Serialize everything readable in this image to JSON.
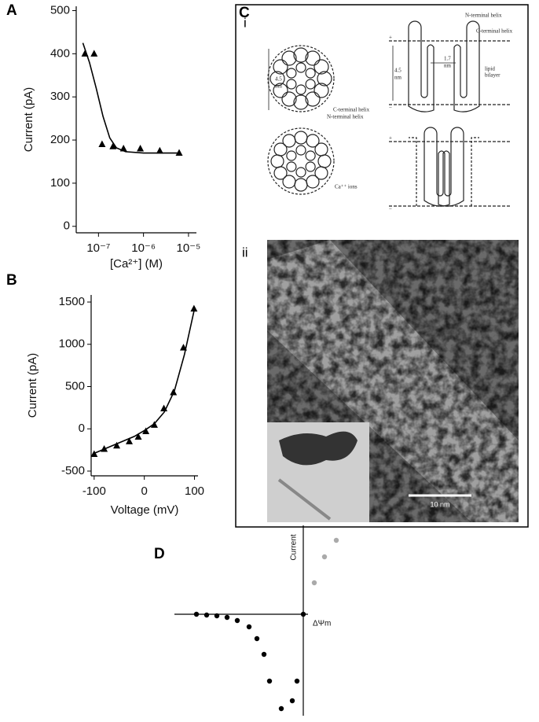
{
  "chart_data": [
    {
      "type": "scatter",
      "label": "A",
      "xlabel": "[Ca²⁺] (M)",
      "ylabel": "Current (pA)",
      "xscale": "log",
      "xlim": [
        3.2e-08,
        1.5e-05
      ],
      "ylim": [
        -15,
        510
      ],
      "xticks": [
        {
          "value": 1e-07,
          "label": "10⁻⁷"
        },
        {
          "value": 1e-06,
          "label": "10⁻⁶"
        },
        {
          "value": 1e-05,
          "label": "10⁻⁵"
        }
      ],
      "yticks": [
        0,
        100,
        200,
        300,
        400,
        500
      ],
      "series": [
        {
          "marker": "triangle",
          "color": "#000",
          "x": [
            5e-08,
            8e-08,
            1.2e-07,
            2.1e-07,
            3.6e-07,
            8.5e-07,
            2.3e-06,
            6.2e-06
          ],
          "values": [
            400,
            400,
            190,
            185,
            180,
            180,
            175,
            170
          ]
        },
        {
          "marker": "none",
          "color": "#000",
          "x": [
            4.5e-08,
            6.3e-08,
            8.9e-08,
            1.26e-07,
            1.78e-07,
            2.5e-07,
            4e-07,
            1e-06,
            6.3e-06
          ],
          "values": [
            425,
            380,
            320,
            255,
            205,
            182,
            173,
            170,
            170
          ]
        }
      ]
    },
    {
      "type": "scatter",
      "label": "B",
      "xlabel": "Voltage (mV)",
      "ylabel": "Current (pA)",
      "xlim": [
        -106,
        107
      ],
      "ylim": [
        -556,
        1584
      ],
      "xticks": [
        -100,
        0,
        100
      ],
      "yticks": [
        -500,
        0,
        500,
        1000,
        1500
      ],
      "series": [
        {
          "marker": "triangle",
          "color": "#000",
          "x": [
            -100,
            -80,
            -55,
            -30,
            -12,
            3,
            20,
            39,
            58,
            78,
            99
          ],
          "values": [
            -300,
            -240,
            -200,
            -150,
            -95,
            -30,
            45,
            240,
            430,
            960,
            1420
          ]
        },
        {
          "marker": "none",
          "color": "#000",
          "x": [
            -100,
            -60,
            -20,
            0,
            20,
            40,
            60,
            80,
            100
          ],
          "values": [
            -290,
            -190,
            -90,
            -20,
            60,
            200,
            450,
            880,
            1420
          ]
        }
      ]
    },
    {
      "type": "scatter",
      "label": "D",
      "xlabel": "ΔΨm",
      "ylabel": "Current",
      "xlim": [
        -164,
        54
      ],
      "ylim": [
        -129,
        113
      ],
      "series": [
        {
          "marker": "circle",
          "color": "#000",
          "x": [
            -136,
            -123,
            -110,
            -97,
            -84,
            -69,
            -59,
            -50,
            -43,
            -28,
            -14,
            -8,
            0
          ],
          "values": [
            0,
            -1,
            -2,
            -4,
            -8,
            -16,
            -31,
            -51,
            -85,
            -120,
            -110,
            -85,
            0
          ]
        },
        {
          "marker": "circle",
          "color": "#aaa",
          "x": [
            14,
            27,
            42
          ],
          "values": [
            40,
            73,
            94
          ]
        }
      ]
    }
  ],
  "panel_c": {
    "label": "C",
    "part_i": {
      "label": "i",
      "texts": [
        "4.5",
        "nm",
        "C-terminal helix",
        "N-terminal helix",
        "Ca⁺⁺ ions",
        "N-terminal helix",
        "C-terminal helix",
        "4.5",
        "nm",
        "1.7",
        "nm",
        "lipid",
        "bilayer",
        "+",
        "−",
        "+",
        "−"
      ]
    },
    "part_ii": {
      "label": "ii",
      "scale_bar": "10 nm"
    }
  }
}
